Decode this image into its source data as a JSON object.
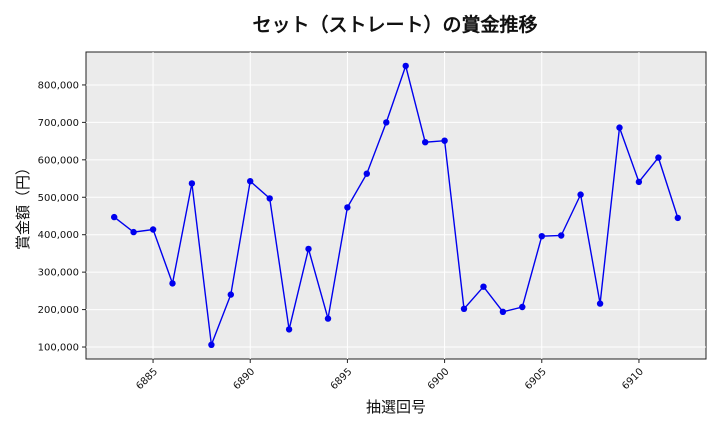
{
  "chart_data": {
    "type": "line",
    "title": "セット（ストレート）の賞金推移",
    "xlabel": "抽選回号",
    "ylabel": "賞金額（円）",
    "x": [
      6883,
      6884,
      6885,
      6886,
      6887,
      6888,
      6889,
      6890,
      6891,
      6892,
      6893,
      6894,
      6895,
      6896,
      6897,
      6898,
      6899,
      6900,
      6901,
      6902,
      6903,
      6904,
      6905,
      6906,
      6907,
      6908,
      6909,
      6910,
      6911,
      6912
    ],
    "series": [
      {
        "values": [
          447000,
          407000,
          414000,
          270000,
          537000,
          106000,
          240000,
          543000,
          497000,
          147000,
          362000,
          176000,
          473000,
          563000,
          700000,
          851000,
          647000,
          651000,
          202000,
          261000,
          194000,
          207000,
          396000,
          398000,
          507000,
          216000,
          686000,
          541000,
          606000,
          445000
        ]
      }
    ],
    "xticks": [
      6885,
      6890,
      6895,
      6900,
      6905,
      6910
    ],
    "xtick_labels": [
      "6885",
      "6890",
      "6895",
      "6900",
      "6905",
      "6910"
    ],
    "yticks": [
      100000,
      200000,
      300000,
      400000,
      500000,
      600000,
      700000,
      800000
    ],
    "ytick_labels": [
      "100,000",
      "200,000",
      "300,000",
      "400,000",
      "500,000",
      "600,000",
      "700,000",
      "800,000"
    ],
    "xlim": [
      6881.55,
      6913.45
    ],
    "ylim": [
      68000,
      888000
    ],
    "grid": true,
    "colors": {
      "line": "#0000ee",
      "marker": "#0000ee",
      "plot_bg": "#ebebeb",
      "grid": "#ffffff"
    }
  }
}
